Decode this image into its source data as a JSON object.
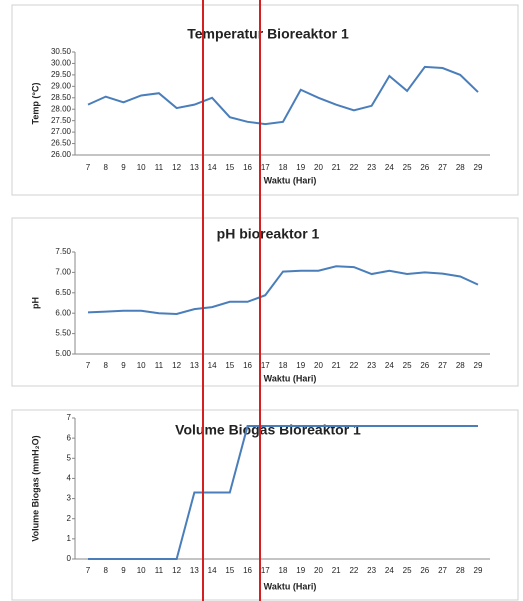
{
  "chart_data": [
    {
      "type": "line",
      "title": "Temperatur Bioreaktor 1",
      "x_label": "Waktu (Hari)",
      "y_label": "Temp (°C)",
      "categories": [
        "7",
        "8",
        "9",
        "10",
        "11",
        "12",
        "13",
        "14",
        "15",
        "16",
        "17",
        "18",
        "19",
        "20",
        "21",
        "22",
        "23",
        "24",
        "25",
        "26",
        "27",
        "28",
        "29"
      ],
      "series": [
        {
          "color": "#4a7ebb",
          "values": [
            28.2,
            28.55,
            28.3,
            28.6,
            28.7,
            28.05,
            28.2,
            28.5,
            27.65,
            27.45,
            27.35,
            27.45,
            28.85,
            28.5,
            28.2,
            27.95,
            28.15,
            29.45,
            28.8,
            29.85,
            29.8,
            29.5,
            28.75
          ]
        }
      ],
      "ylim": [
        26,
        30.5
      ],
      "yticks": [
        {
          "value": 26,
          "label": "26.00"
        },
        {
          "value": 26.5,
          "label": "26.50"
        },
        {
          "value": 27,
          "label": "27.00"
        },
        {
          "value": 27.5,
          "label": "27.50"
        },
        {
          "value": 28,
          "label": "28.00"
        },
        {
          "value": 28.5,
          "label": "28.50"
        },
        {
          "value": 29,
          "label": "29.00"
        },
        {
          "value": 29.5,
          "label": "29.50"
        },
        {
          "value": 30,
          "label": "30.00"
        },
        {
          "value": 30.5,
          "label": "30.50"
        }
      ],
      "grid": false
    },
    {
      "type": "line",
      "title": "pH bioreaktor 1",
      "x_label": "Waktu (Hari)",
      "y_label": "pH",
      "categories": [
        "7",
        "8",
        "9",
        "10",
        "11",
        "12",
        "13",
        "14",
        "15",
        "16",
        "17",
        "18",
        "19",
        "20",
        "21",
        "22",
        "23",
        "24",
        "25",
        "26",
        "27",
        "28",
        "29"
      ],
      "series": [
        {
          "color": "#4a7ebb",
          "values": [
            6.02,
            6.04,
            6.06,
            6.06,
            6.0,
            5.98,
            6.1,
            6.15,
            6.28,
            6.28,
            6.44,
            7.02,
            7.04,
            7.04,
            7.15,
            7.13,
            6.96,
            7.04,
            6.96,
            7.0,
            6.97,
            6.9,
            6.7
          ]
        }
      ],
      "ylim": [
        5,
        7.5
      ],
      "yticks": [
        {
          "value": 5,
          "label": "5.00"
        },
        {
          "value": 5.5,
          "label": "5.50"
        },
        {
          "value": 6,
          "label": "6.00"
        },
        {
          "value": 6.5,
          "label": "6.50"
        },
        {
          "value": 7,
          "label": "7.00"
        },
        {
          "value": 7.5,
          "label": "7.50"
        }
      ],
      "grid": false
    },
    {
      "type": "line",
      "title": "Volume  Biogas Bioreaktor 1",
      "x_label": "Waktu (Hari)",
      "y_label": "Volume Biogas (mmH₂O)",
      "categories": [
        "7",
        "8",
        "9",
        "10",
        "11",
        "12",
        "13",
        "14",
        "15",
        "16",
        "17",
        "18",
        "19",
        "20",
        "21",
        "22",
        "23",
        "24",
        "25",
        "26",
        "27",
        "28",
        "29"
      ],
      "series": [
        {
          "color": "#4a7ebb",
          "values": [
            0,
            0,
            0,
            0,
            0,
            0,
            3.3,
            3.3,
            3.3,
            6.6,
            6.6,
            6.6,
            6.6,
            6.6,
            6.6,
            6.6,
            6.6,
            6.6,
            6.6,
            6.6,
            6.6,
            6.6,
            6.6
          ]
        }
      ],
      "ylim": [
        0,
        7
      ],
      "yticks": [
        0,
        1,
        2,
        3,
        4,
        5,
        6,
        7
      ],
      "grid": false
    }
  ]
}
